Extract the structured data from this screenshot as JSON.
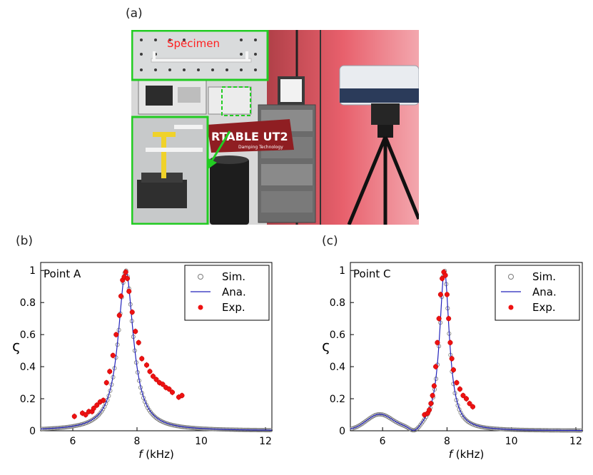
{
  "panel_labels": {
    "a": "(a)",
    "b": "(b)",
    "c": "(c)"
  },
  "photo": {
    "inset_label": "Specimen",
    "sign_text": "RTABLE UT2",
    "sign_subtext": "Damping Technology",
    "label_color": "#ff2020",
    "inset_border_color": "#22cc22",
    "glow_color": "#e8606c"
  },
  "chart_data": [
    {
      "type": "scatter",
      "annotation": "Point A",
      "xlabel_italic": "f",
      "xlabel_unit": " (kHz)",
      "ylabel": "ς",
      "xlim": [
        5,
        12.2
      ],
      "ylim": [
        0,
        1.05
      ],
      "x_ticks": [
        6,
        8,
        10,
        12
      ],
      "y_ticks": [
        0,
        0.2,
        0.4,
        0.6,
        0.8,
        1
      ],
      "y_tick_labels": [
        "0",
        "0.2",
        "0.4",
        "0.6",
        "0.8",
        "1"
      ],
      "legend": [
        "Sim.",
        "Ana.",
        "Exp."
      ],
      "legend_position": "top-right",
      "colors": {
        "sim": "#7a7a7a",
        "ana": "#2222bb",
        "exp": "#ee1111"
      },
      "series": [
        {
          "name": "Sim.",
          "style": "open circles",
          "model": {
            "f0": 7.65,
            "gamma": 0.28,
            "floor": 0.0
          }
        },
        {
          "name": "Ana.",
          "style": "line",
          "model": {
            "f0": 7.65,
            "gamma": 0.285,
            "floor": 0.0
          }
        },
        {
          "name": "Exp.",
          "style": "filled circles with error bars",
          "x": [
            6.05,
            6.3,
            6.4,
            6.5,
            6.6,
            6.65,
            6.75,
            6.85,
            6.95,
            7.05,
            7.15,
            7.25,
            7.35,
            7.45,
            7.5,
            7.55,
            7.6,
            7.65,
            7.7,
            7.75,
            7.85,
            7.95,
            8.05,
            8.15,
            8.3,
            8.4,
            8.5,
            8.6,
            8.7,
            8.8,
            8.9,
            9.0,
            9.1,
            9.3,
            9.4
          ],
          "y": [
            0.09,
            0.11,
            0.1,
            0.12,
            0.12,
            0.14,
            0.16,
            0.18,
            0.19,
            0.3,
            0.37,
            0.47,
            0.6,
            0.72,
            0.84,
            0.94,
            0.96,
            0.99,
            0.95,
            0.87,
            0.74,
            0.62,
            0.55,
            0.45,
            0.41,
            0.37,
            0.34,
            0.32,
            0.3,
            0.29,
            0.27,
            0.26,
            0.24,
            0.21,
            0.22
          ]
        }
      ]
    },
    {
      "type": "scatter",
      "annotation": "Point C",
      "xlabel_italic": "f",
      "xlabel_unit": " (kHz)",
      "ylabel": "ς",
      "xlim": [
        5,
        12.2
      ],
      "ylim": [
        0,
        1.05
      ],
      "x_ticks": [
        6,
        8,
        10,
        12
      ],
      "y_ticks": [
        0,
        0.2,
        0.4,
        0.6,
        0.8,
        1
      ],
      "y_tick_labels": [
        "0",
        "0.2",
        "0.4",
        "0.6",
        "0.8",
        "1"
      ],
      "legend": [
        "Sim.",
        "Ana.",
        "Exp."
      ],
      "legend_position": "top-right",
      "colors": {
        "sim": "#7a7a7a",
        "ana": "#2222bb",
        "exp": "#ee1111"
      },
      "series": [
        {
          "name": "Sim.",
          "style": "open circles",
          "model": {
            "f0": 7.92,
            "gamma": 0.18,
            "floor": 0.0,
            "bump_f": 5.9,
            "bump_h": 0.095,
            "bump_w": 0.4,
            "dip_f": 6.95,
            "dip_w": 0.22
          }
        },
        {
          "name": "Ana.",
          "style": "line",
          "model": {
            "f0": 7.92,
            "gamma": 0.185,
            "floor": 0.0,
            "bump_f": 5.9,
            "bump_h": 0.095,
            "bump_w": 0.4,
            "dip_f": 6.95,
            "dip_w": 0.22
          }
        },
        {
          "name": "Exp.",
          "style": "filled circles with error bars",
          "x": [
            7.3,
            7.4,
            7.45,
            7.5,
            7.55,
            7.6,
            7.65,
            7.7,
            7.75,
            7.8,
            7.85,
            7.9,
            7.95,
            8.0,
            8.05,
            8.1,
            8.15,
            8.2,
            8.3,
            8.4,
            8.5,
            8.6,
            8.7,
            8.8
          ],
          "y": [
            0.1,
            0.11,
            0.13,
            0.17,
            0.22,
            0.28,
            0.4,
            0.55,
            0.7,
            0.85,
            0.95,
            0.99,
            0.97,
            0.85,
            0.7,
            0.55,
            0.45,
            0.38,
            0.3,
            0.26,
            0.22,
            0.2,
            0.17,
            0.15
          ]
        }
      ]
    }
  ]
}
